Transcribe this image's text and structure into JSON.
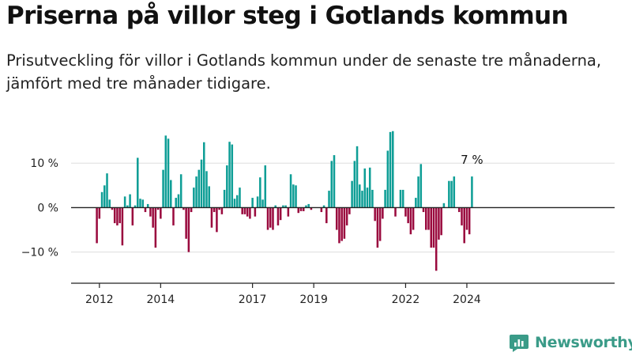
{
  "title": "Priserna på villor steg i Gotlands kommun",
  "subtitle": "Prisutveckling för villor i Gotlands kommun under de senaste tre månaderna, jämfört med tre månader tidigare.",
  "brand": "Newsworthy",
  "colors": {
    "positive": "#0e9e96",
    "negative": "#9a0a3e",
    "axis": "#222222",
    "grid": "#dddddd",
    "brand": "#3a9b88"
  },
  "chart_data": {
    "type": "bar",
    "start": "2011-12",
    "ylim": [
      -17,
      20
    ],
    "yticks": [
      -10,
      0,
      10
    ],
    "ytick_labels": [
      "−10 %",
      "0 %",
      "10 %"
    ],
    "xticks": [
      "2012",
      "2014",
      "2017",
      "2019",
      "2022",
      "2024"
    ],
    "xtick_months": [
      "2012-01",
      "2014-01",
      "2017-01",
      "2019-01",
      "2022-01",
      "2024-01"
    ],
    "end_label": "7 %",
    "values": [
      -8,
      -2.5,
      3.5,
      5,
      7.7,
      1.8,
      -0.5,
      -3.5,
      -4,
      -3.5,
      -8.5,
      2.5,
      0.5,
      3,
      -4,
      0.5,
      11.2,
      2,
      1.8,
      -1,
      0.8,
      -2,
      -4.5,
      -9,
      -0.5,
      -2.5,
      8.5,
      16.2,
      15.5,
      6.2,
      -4,
      2.2,
      3,
      7.5,
      -0.5,
      -7,
      -10,
      -1,
      4.5,
      7,
      8.5,
      10.8,
      14.7,
      8.2,
      4.8,
      -4.5,
      -1,
      -5.5,
      -0.5,
      -1.5,
      4,
      9.5,
      14.8,
      14.2,
      2,
      2.8,
      4.5,
      -1.5,
      -1.5,
      -2,
      -2.5,
      2.2,
      -2,
      2.5,
      6.8,
      1.8,
      9.5,
      -5,
      -4.5,
      -5,
      0.5,
      -4,
      -2.8,
      0.5,
      0.5,
      -2,
      7.5,
      5.2,
      5,
      -1.2,
      -0.8,
      -0.8,
      0.5,
      0.8,
      -0.5,
      0,
      0,
      0,
      -1,
      0.5,
      -3.5,
      3.8,
      10.5,
      11.8,
      -5,
      -8,
      -7.5,
      -7,
      -4,
      -1.5,
      6,
      10.5,
      13.8,
      5.2,
      3.8,
      8.8,
      4.5,
      9,
      4,
      -3,
      -9,
      -7.5,
      -2.5,
      4,
      12.8,
      17,
      17.2,
      -2,
      0,
      4,
      4,
      -2,
      -3.5,
      -6,
      -5,
      2.2,
      7,
      9.8,
      -1,
      -5,
      -5,
      -9,
      -9,
      -14.2,
      -7.2,
      -6.2,
      1,
      0,
      6,
      6,
      7,
      0,
      -1,
      -4,
      -8,
      -5,
      -6,
      7
    ]
  }
}
